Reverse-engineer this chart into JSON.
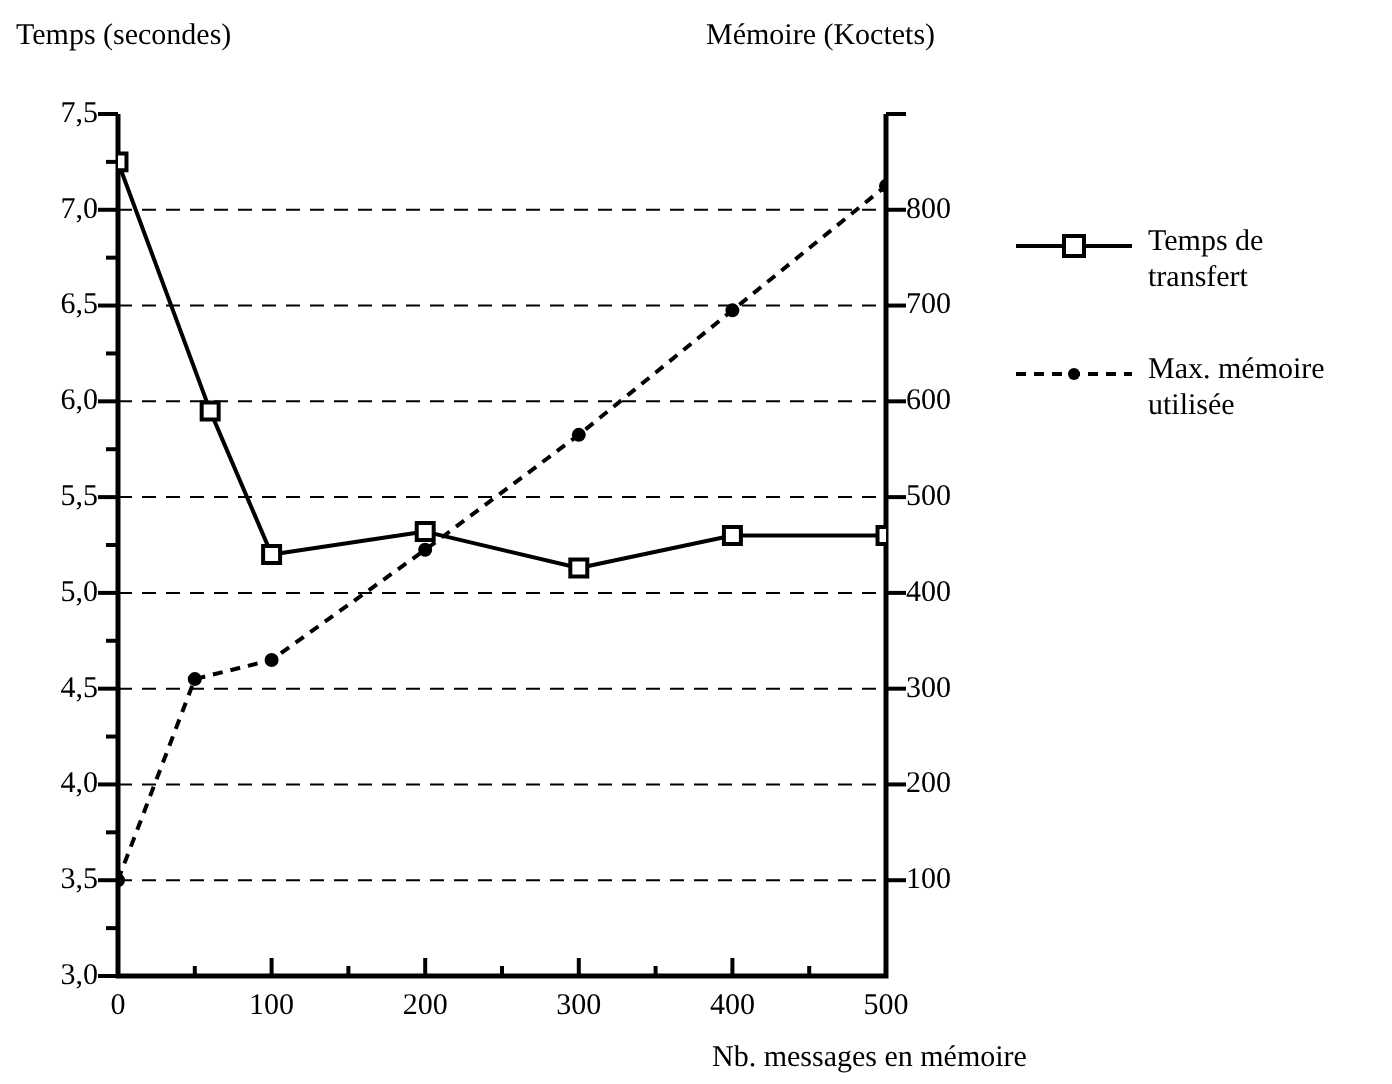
{
  "chart_data": {
    "type": "line",
    "ylabel": "Temps (secondes)",
    "y2label": "Mémoire (Koctets)",
    "xlabel": "Nb. messages en mémoire",
    "xlim": [
      0,
      500
    ],
    "xticks": [
      0,
      {
        "value": 50,
        "label": null
      },
      100,
      {
        "value": 150,
        "label": null
      },
      200,
      {
        "value": 250,
        "label": null
      },
      300,
      {
        "value": 350,
        "label": null
      },
      400,
      {
        "value": 450,
        "label": null
      },
      500
    ],
    "ylim": [
      3,
      7.5
    ],
    "yticks": [
      {
        "value": 3,
        "label": "3,0"
      },
      {
        "value": 3.25,
        "label": null
      },
      {
        "value": 3.5,
        "label": "3,5"
      },
      {
        "value": 3.75,
        "label": null
      },
      {
        "value": 4,
        "label": "4,0"
      },
      {
        "value": 4.25,
        "label": null
      },
      {
        "value": 4.5,
        "label": "4,5"
      },
      {
        "value": 4.75,
        "label": null
      },
      {
        "value": 5,
        "label": "5,0"
      },
      {
        "value": 5.25,
        "label": null
      },
      {
        "value": 5.5,
        "label": "5,5"
      },
      {
        "value": 5.75,
        "label": null
      },
      {
        "value": 6,
        "label": "6,0"
      },
      {
        "value": 6.25,
        "label": null
      },
      {
        "value": 6.5,
        "label": "6,5"
      },
      {
        "value": 6.75,
        "label": null
      },
      {
        "value": 7,
        "label": "7,0"
      },
      {
        "value": 7.25,
        "label": null
      },
      {
        "value": 7.5,
        "label": "7,5"
      }
    ],
    "y2lim": [
      0,
      900
    ],
    "y2ticks": [
      100,
      200,
      300,
      400,
      500,
      600,
      700,
      800,
      {
        "value": 900,
        "label": null
      }
    ],
    "grid": "y",
    "legend": "right",
    "series": [
      {
        "name": "Temps de transfert",
        "color": "#000000",
        "marker": "square",
        "line_style": "solid",
        "x": [
          0,
          60,
          100,
          200,
          300,
          400,
          500
        ],
        "values": [
          7.25,
          5.95,
          5.2,
          5.32,
          5.13,
          5.3,
          5.3
        ]
      },
      {
        "name": "Max. mémoire utilisée",
        "color": "#000000",
        "marker": "circle",
        "line_style": "dashed",
        "axis": "y2",
        "x": [
          0,
          50,
          100,
          200,
          300,
          400,
          500
        ],
        "values": [
          100,
          310,
          330,
          445,
          565,
          695,
          825
        ]
      }
    ]
  }
}
